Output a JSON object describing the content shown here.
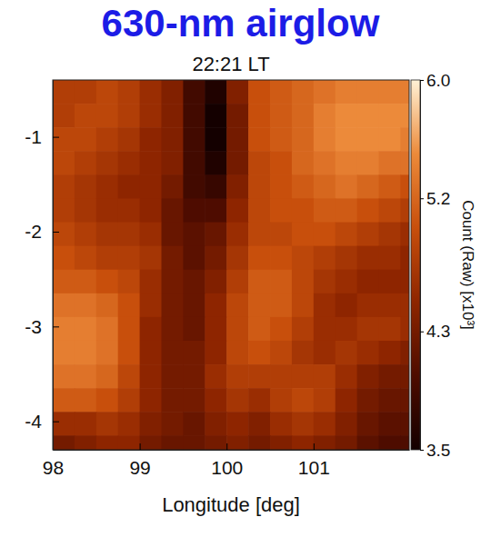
{
  "chart_data": {
    "type": "heatmap",
    "title": "630-nm airglow",
    "subtitle": "22:21 LT",
    "x_label": "Longitude [deg]",
    "xlim": [
      98,
      102.1
    ],
    "xticks": [
      98,
      99,
      100,
      101
    ],
    "ylim": [
      -4.3,
      -0.4
    ],
    "yticks": [
      -1,
      -2,
      -3,
      -4
    ],
    "x_edges": [
      98,
      98.25,
      98.5,
      98.75,
      99,
      99.25,
      99.5,
      99.75,
      100,
      100.25,
      100.5,
      100.75,
      101,
      101.25,
      101.5,
      101.75,
      102,
      102.1
    ],
    "y_edges": [
      -0.4,
      -0.65,
      -0.9,
      -1.15,
      -1.4,
      -1.65,
      -1.9,
      -2.15,
      -2.4,
      -2.65,
      -2.9,
      -3.15,
      -3.4,
      -3.65,
      -3.9,
      -4.15,
      -4.3
    ],
    "values": [
      [
        4.8,
        4.8,
        4.9,
        4.8,
        4.6,
        4.4,
        3.9,
        3.6,
        4.4,
        5.0,
        5.1,
        5.2,
        5.3,
        5.4,
        5.4,
        5.4,
        5.4
      ],
      [
        4.8,
        4.9,
        4.9,
        4.8,
        4.6,
        4.4,
        3.9,
        3.5,
        4.3,
        5.0,
        5.1,
        5.2,
        5.4,
        5.5,
        5.5,
        5.5,
        5.5
      ],
      [
        4.9,
        4.9,
        4.8,
        4.7,
        4.5,
        4.4,
        3.9,
        3.5,
        4.3,
        5.0,
        5.1,
        5.2,
        5.4,
        5.5,
        5.5,
        5.5,
        5.4
      ],
      [
        4.9,
        4.8,
        4.7,
        4.6,
        4.5,
        4.4,
        3.9,
        3.6,
        4.3,
        4.9,
        5.0,
        5.2,
        5.3,
        5.4,
        5.4,
        5.3,
        5.3
      ],
      [
        4.8,
        4.7,
        4.6,
        4.5,
        4.5,
        4.3,
        3.9,
        3.8,
        4.4,
        4.9,
        5.0,
        5.1,
        5.2,
        5.3,
        5.2,
        5.1,
        5.0
      ],
      [
        4.8,
        4.7,
        4.6,
        4.6,
        4.5,
        4.2,
        4.0,
        4.0,
        4.5,
        4.9,
        5.0,
        5.0,
        5.1,
        5.1,
        5.0,
        4.9,
        4.8
      ],
      [
        4.9,
        4.8,
        4.7,
        4.7,
        4.6,
        4.2,
        4.1,
        4.2,
        4.6,
        4.9,
        4.9,
        5.0,
        5.0,
        4.9,
        4.8,
        4.7,
        4.6
      ],
      [
        5.0,
        4.9,
        4.8,
        4.8,
        4.7,
        4.3,
        4.1,
        4.3,
        4.7,
        5.0,
        5.0,
        4.9,
        4.8,
        4.7,
        4.6,
        4.6,
        4.5
      ],
      [
        5.1,
        5.1,
        5.0,
        4.9,
        4.6,
        4.3,
        4.2,
        4.4,
        4.8,
        5.1,
        5.1,
        4.9,
        4.7,
        4.6,
        4.5,
        4.5,
        4.5
      ],
      [
        5.3,
        5.3,
        5.2,
        5.0,
        4.6,
        4.3,
        4.2,
        4.5,
        4.9,
        5.1,
        5.1,
        4.9,
        4.6,
        4.5,
        4.6,
        4.6,
        4.6
      ],
      [
        5.4,
        5.4,
        5.3,
        5.0,
        4.5,
        4.3,
        4.2,
        4.5,
        4.9,
        5.1,
        5.0,
        4.8,
        4.6,
        4.6,
        4.7,
        4.7,
        4.6
      ],
      [
        5.4,
        5.4,
        5.3,
        5.0,
        4.5,
        4.3,
        4.3,
        4.5,
        4.9,
        5.0,
        4.9,
        4.7,
        4.6,
        4.7,
        4.6,
        4.5,
        4.4
      ],
      [
        5.3,
        5.3,
        5.2,
        4.9,
        4.5,
        4.3,
        4.3,
        4.6,
        4.8,
        4.8,
        4.8,
        4.8,
        4.8,
        4.6,
        4.4,
        4.3,
        4.3
      ],
      [
        5.1,
        5.1,
        5.0,
        4.8,
        4.5,
        4.3,
        4.3,
        4.5,
        4.7,
        4.6,
        4.8,
        4.9,
        4.8,
        4.5,
        4.3,
        4.2,
        4.2
      ],
      [
        4.6,
        4.6,
        4.7,
        4.6,
        4.4,
        4.3,
        4.2,
        4.4,
        4.5,
        4.4,
        4.6,
        4.7,
        4.6,
        4.4,
        4.2,
        4.1,
        4.1
      ],
      [
        4.3,
        4.4,
        4.5,
        4.5,
        4.3,
        4.2,
        4.2,
        4.3,
        4.4,
        4.3,
        4.4,
        4.5,
        4.4,
        4.3,
        4.1,
        4.0,
        4.0
      ]
    ],
    "colorbar": {
      "label": "Count (Raw) [x10³]",
      "range": [
        3.5,
        6.0
      ],
      "ticks": [
        {
          "value": 6,
          "label": "6.0"
        },
        5.2,
        4.3,
        3.5
      ]
    }
  }
}
